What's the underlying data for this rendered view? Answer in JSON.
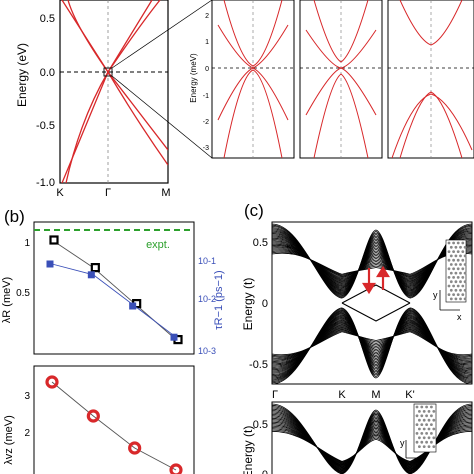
{
  "panel_a": {
    "ylabel": "Energy (eV)",
    "yticks": [
      "0.5",
      "0.0",
      "-0.5",
      "-1.0"
    ],
    "xticks": [
      "K",
      "Γ",
      "M"
    ],
    "inset_ylabel": "Energy (meV)",
    "inset_yticks": [
      "2",
      "1",
      "0",
      "-1",
      "-2",
      "-3"
    ]
  },
  "panel_b": {
    "label": "(b)",
    "top_ylabel": "λR (meV)",
    "top_yticks": [
      "1",
      "0.5"
    ],
    "right_ylabel": "τR−1 (ps−1)",
    "right_yticks": [
      "10-1",
      "10-2",
      "10-3"
    ],
    "expt_label": "expt.",
    "bottom_ylabel": "λvz (meV)",
    "bottom_yticks": [
      "3",
      "2"
    ]
  },
  "panel_c": {
    "label": "(c)",
    "ylabel": "Energy (t)",
    "yticks": [
      "0.5",
      "0",
      "-0.5"
    ],
    "xticks": [
      "Γ",
      "K",
      "M",
      "K'"
    ],
    "bottom_ylabel": "Energy (t)",
    "bottom_yticks": [
      "0.5",
      "0"
    ],
    "axis_x": "x",
    "axis_y": "y"
  },
  "colors": {
    "band_red": "#d8282a",
    "expt_green": "#2ca02c",
    "tau_blue": "#3a4fb8",
    "black": "#000000"
  },
  "chart_data": [
    {
      "type": "line",
      "panel": "b-top",
      "series": [
        {
          "values": [
            0.95,
            0.72,
            0.42,
            0.12
          ]
        },
        {
          "values": [
            0.75,
            0.66,
            0.4,
            0.14
          ]
        }
      ],
      "x": [
        1,
        2,
        3,
        4
      ],
      "ylim": [
        0,
        1.1
      ]
    },
    {
      "type": "line",
      "panel": "b-bottom",
      "series": [
        {
          "values": [
            3.0,
            2.15,
            1.35,
            0.8
          ]
        }
      ],
      "x": [
        1,
        2,
        3,
        4
      ],
      "ylim": [
        0.6,
        3.4
      ]
    }
  ]
}
